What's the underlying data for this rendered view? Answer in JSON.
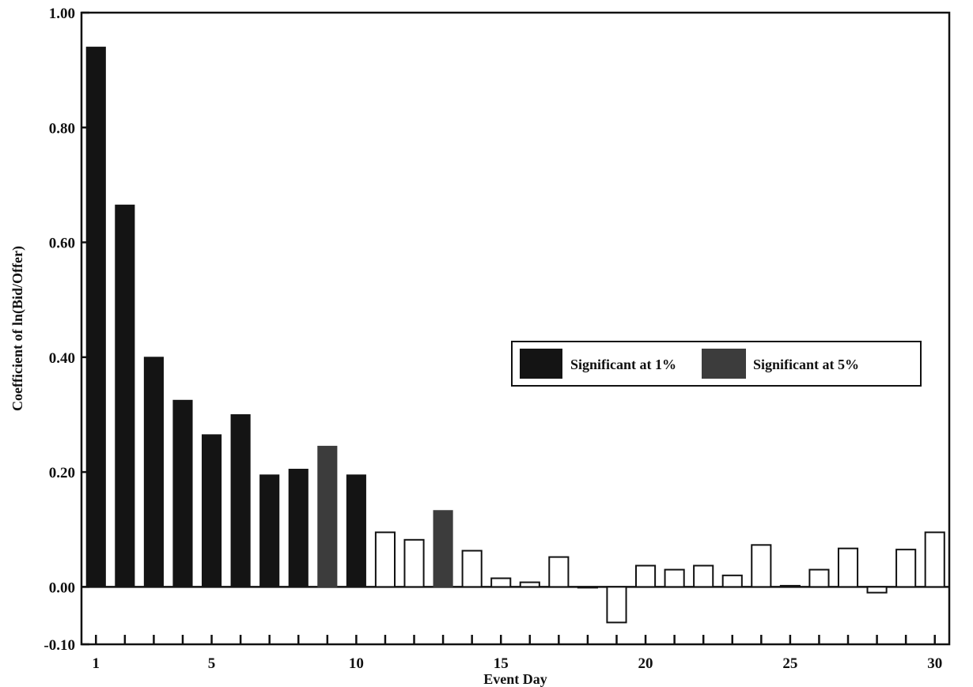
{
  "chart_data": {
    "type": "bar",
    "title": "",
    "xlabel": "Event Day",
    "ylabel": "Coefficient of ln(Bid/Offer)",
    "ylim": [
      -0.1,
      1.0
    ],
    "xlim": [
      1,
      30
    ],
    "y_ticks": [
      -0.1,
      0.0,
      0.2,
      0.4,
      0.6,
      0.8,
      1.0
    ],
    "y_tick_labels": [
      "-0.10",
      "0.00",
      "0.20",
      "0.40",
      "0.60",
      "0.80",
      "1.00"
    ],
    "x_tick_labels": [
      "1",
      "5",
      "10",
      "15",
      "20",
      "25",
      "30"
    ],
    "x_tick_positions": [
      1,
      5,
      10,
      15,
      20,
      25,
      30
    ],
    "legend_position": "right",
    "legend": [
      {
        "label": "Significant at 1%",
        "key": "sig1",
        "color": "#141414"
      },
      {
        "label": "Significant at 5%",
        "key": "sig5",
        "color": "#3c3c3c"
      }
    ],
    "not_significant_style": {
      "fill": "#ffffff",
      "stroke": "#111111"
    },
    "x": [
      1,
      2,
      3,
      4,
      5,
      6,
      7,
      8,
      9,
      10,
      11,
      12,
      13,
      14,
      15,
      16,
      17,
      18,
      19,
      20,
      21,
      22,
      23,
      24,
      25,
      26,
      27,
      28,
      29,
      30
    ],
    "values": [
      0.94,
      0.665,
      0.4,
      0.325,
      0.265,
      0.3,
      0.195,
      0.205,
      0.245,
      0.195,
      0.095,
      0.082,
      0.133,
      0.063,
      0.015,
      0.008,
      0.052,
      0.0,
      -0.062,
      0.037,
      0.03,
      0.037,
      0.02,
      0.073,
      0.002,
      0.03,
      0.067,
      -0.01,
      0.065,
      0.095
    ],
    "significance": [
      "sig1",
      "sig1",
      "sig1",
      "sig1",
      "sig1",
      "sig1",
      "sig1",
      "sig1",
      "sig5",
      "sig1",
      "none",
      "none",
      "sig5",
      "none",
      "none",
      "none",
      "none",
      "none",
      "none",
      "none",
      "none",
      "none",
      "none",
      "none",
      "none",
      "none",
      "none",
      "none",
      "none",
      "none"
    ],
    "grid": false
  }
}
